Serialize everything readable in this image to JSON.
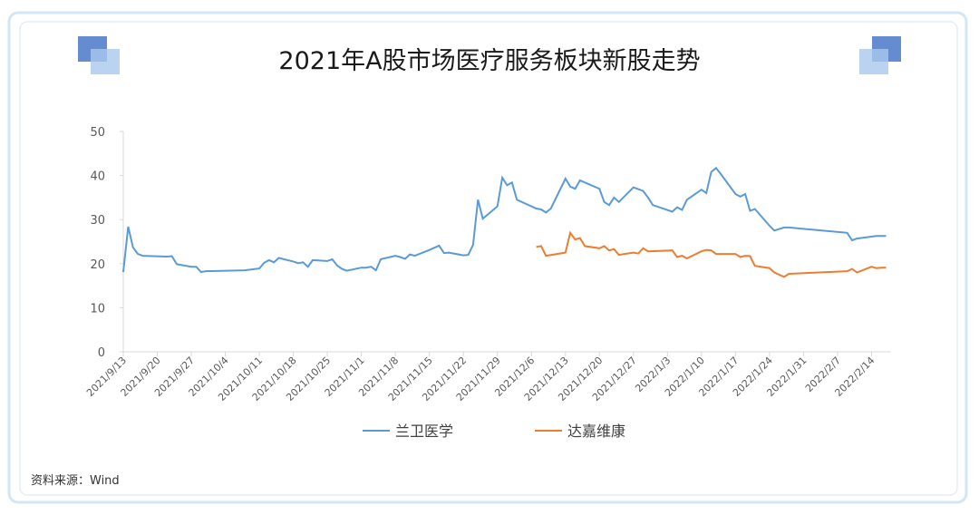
{
  "chart_data": {
    "type": "line",
    "title": "2021年A股市场医疗服务板块新股走势",
    "source": "资料来源：Wind",
    "xlim": [
      "2021/9/13",
      "2022/2/18"
    ],
    "xticks": [
      "2021/9/13",
      "2021/9/20",
      "2021/9/27",
      "2021/10/4",
      "2021/10/11",
      "2021/10/18",
      "2021/10/25",
      "2021/11/1",
      "2021/11/8",
      "2021/11/15",
      "2021/11/22",
      "2021/11/29",
      "2021/12/6",
      "2021/12/13",
      "2021/12/20",
      "2021/12/27",
      "2022/1/3",
      "2022/1/10",
      "2022/1/17",
      "2022/1/24",
      "2022/1/31",
      "2022/2/7",
      "2022/2/14"
    ],
    "ylim": [
      0,
      50
    ],
    "yticks": [
      0,
      10,
      20,
      30,
      40,
      50
    ],
    "legend": "bottom",
    "series": [
      {
        "name": "兰卫医学",
        "color": "#5b9bd5",
        "x": [
          "2021/9/13",
          "2021/9/14",
          "2021/9/15",
          "2021/9/16",
          "2021/9/17",
          "2021/9/22",
          "2021/9/23",
          "2021/9/24",
          "2021/9/27",
          "2021/9/28",
          "2021/9/29",
          "2021/9/30",
          "2021/10/8",
          "2021/10/11",
          "2021/10/12",
          "2021/10/13",
          "2021/10/14",
          "2021/10/15",
          "2021/10/18",
          "2021/10/19",
          "2021/10/20",
          "2021/10/21",
          "2021/10/22",
          "2021/10/25",
          "2021/10/26",
          "2021/10/27",
          "2021/10/28",
          "2021/10/29",
          "2021/11/1",
          "2021/11/2",
          "2021/11/3",
          "2021/11/4",
          "2021/11/5",
          "2021/11/8",
          "2021/11/9",
          "2021/11/10",
          "2021/11/11",
          "2021/11/12",
          "2021/11/15",
          "2021/11/16",
          "2021/11/17",
          "2021/11/18",
          "2021/11/19",
          "2021/11/22",
          "2021/11/23",
          "2021/11/24",
          "2021/11/25",
          "2021/11/26",
          "2021/11/29",
          "2021/11/30",
          "2021/12/1",
          "2021/12/2",
          "2021/12/3",
          "2021/12/7",
          "2021/12/8",
          "2021/12/9",
          "2021/12/10",
          "2021/12/13",
          "2021/12/14",
          "2021/12/15",
          "2021/12/16",
          "2021/12/20",
          "2021/12/21",
          "2021/12/22",
          "2021/12/23",
          "2021/12/24",
          "2021/12/27",
          "2021/12/29",
          "2021/12/30",
          "2021/12/31",
          "2022/1/4",
          "2022/1/5",
          "2022/1/6",
          "2022/1/7",
          "2022/1/10",
          "2022/1/11",
          "2022/1/12",
          "2022/1/13",
          "2022/1/14",
          "2022/1/17",
          "2022/1/18",
          "2022/1/19",
          "2022/1/20",
          "2022/1/21",
          "2022/1/24",
          "2022/1/25",
          "2022/1/27",
          "2022/1/28",
          "2022/2/9",
          "2022/2/10",
          "2022/2/11",
          "2022/2/15",
          "2022/2/16",
          "2022/2/17"
        ],
        "values": [
          18.1,
          28.4,
          23.7,
          22.2,
          21.8,
          21.6,
          21.7,
          19.9,
          19.3,
          19.3,
          18.1,
          18.3,
          18.5,
          18.9,
          20.2,
          20.8,
          20.3,
          21.3,
          20.5,
          20.1,
          20.3,
          19.3,
          20.8,
          20.6,
          21.0,
          19.6,
          18.8,
          18.4,
          19.1,
          19.1,
          19.3,
          18.5,
          21.0,
          21.8,
          21.5,
          21.1,
          22.1,
          21.8,
          23.1,
          23.6,
          24.1,
          22.4,
          22.5,
          21.9,
          22.0,
          24.3,
          34.5,
          30.2,
          33.0,
          39.5,
          37.8,
          38.4,
          34.5,
          32.5,
          32.3,
          31.6,
          32.5,
          39.3,
          37.5,
          37.0,
          38.9,
          37.0,
          34.0,
          33.3,
          35.0,
          34.0,
          37.3,
          36.5,
          35.0,
          33.3,
          31.8,
          32.8,
          32.2,
          34.5,
          36.8,
          36.0,
          40.8,
          41.7,
          40.3,
          35.8,
          35.2,
          35.8,
          32.0,
          32.4,
          28.6,
          27.5,
          28.2,
          28.2,
          27.0,
          25.3,
          25.7,
          26.3,
          26.3,
          26.3
        ]
      },
      {
        "name": "达嘉维康",
        "color": "#ed7d31",
        "x": [
          "2021/12/7",
          "2021/12/8",
          "2021/12/9",
          "2021/12/13",
          "2021/12/14",
          "2021/12/15",
          "2021/12/16",
          "2021/12/17",
          "2021/12/20",
          "2021/12/21",
          "2021/12/22",
          "2021/12/23",
          "2021/12/24",
          "2021/12/27",
          "2021/12/28",
          "2021/12/29",
          "2021/12/30",
          "2022/1/4",
          "2022/1/5",
          "2022/1/6",
          "2022/1/7",
          "2022/1/10",
          "2022/1/11",
          "2022/1/12",
          "2022/1/13",
          "2022/1/17",
          "2022/1/18",
          "2022/1/19",
          "2022/1/20",
          "2022/1/21",
          "2022/1/24",
          "2022/1/25",
          "2022/1/27",
          "2022/1/28",
          "2022/2/9",
          "2022/2/10",
          "2022/2/11",
          "2022/2/14",
          "2022/2/15",
          "2022/2/16",
          "2022/2/17"
        ],
        "values": [
          23.8,
          24.0,
          21.8,
          22.5,
          27.0,
          25.5,
          25.8,
          24.0,
          23.5,
          24.0,
          23.0,
          23.3,
          22.0,
          22.5,
          22.3,
          23.5,
          22.8,
          23.0,
          21.5,
          21.8,
          21.2,
          22.8,
          23.1,
          23.0,
          22.2,
          22.2,
          21.5,
          21.8,
          21.7,
          19.5,
          19.0,
          18.0,
          17.0,
          17.7,
          18.3,
          18.8,
          18.0,
          19.3,
          19.0,
          19.1,
          19.1
        ]
      }
    ]
  }
}
